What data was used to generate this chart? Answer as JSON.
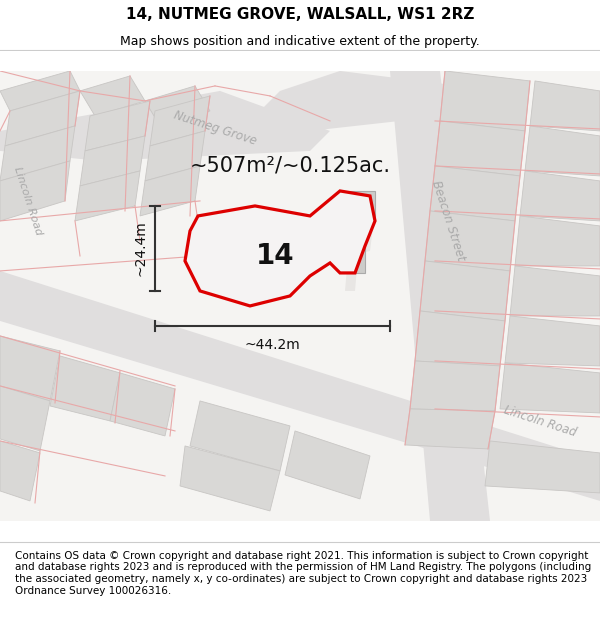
{
  "title": "14, NUTMEG GROVE, WALSALL, WS1 2RZ",
  "subtitle": "Map shows position and indicative extent of the property.",
  "footer": "Contains OS data © Crown copyright and database right 2021. This information is subject to Crown copyright and database rights 2023 and is reproduced with the permission of HM Land Registry. The polygons (including the associated geometry, namely x, y co-ordinates) are subject to Crown copyright and database rights 2023 Ordnance Survey 100026316.",
  "area_text": "~507m²/~0.125ac.",
  "label_14": "14",
  "dim_h": "~24.4m",
  "dim_w": "~44.2m",
  "map_bg": "#f5f4f2",
  "road_surface_color": "#e0dede",
  "building_fill": "#d9d8d6",
  "building_edge": "#c8c6c4",
  "lot_line_color": "#e8a8a8",
  "plot_outline_color": "#dd0000",
  "title_fontsize": 11,
  "subtitle_fontsize": 9,
  "footer_fontsize": 7.5,
  "area_fontsize": 15,
  "label_fontsize": 20,
  "dim_fontsize": 10,
  "road_label_fontsize": 9
}
